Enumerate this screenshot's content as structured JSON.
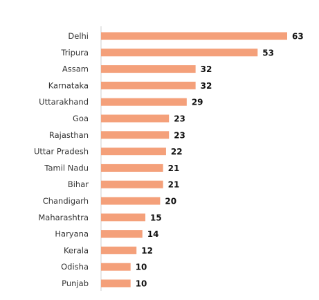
{
  "chart_data": {
    "type": "bar",
    "orientation": "horizontal",
    "categories": [
      "Delhi",
      "Tripura",
      "Assam",
      "Karnataka",
      "Uttarakhand",
      "Goa",
      "Rajasthan",
      "Uttar Pradesh",
      "Tamil Nadu",
      "Bihar",
      "Chandigarh",
      "Maharashtra",
      "Haryana",
      "Kerala",
      "Odisha",
      "Punjab"
    ],
    "values": [
      63,
      53,
      32,
      32,
      29,
      23,
      23,
      22,
      21,
      21,
      20,
      15,
      14,
      12,
      10,
      10
    ],
    "data_labels": [
      "63",
      "53",
      "32",
      "32",
      "29",
      "23",
      "23",
      "22",
      "21",
      "21",
      "20",
      "15",
      "14",
      "12",
      "10",
      "10"
    ],
    "title": "",
    "xlabel": "",
    "ylabel": "",
    "xlim": [
      0,
      63
    ],
    "grid": false,
    "legend": "none",
    "colors": {
      "bar": "#F4A07A",
      "axis": "#CCCCCC",
      "category_text": "#333333",
      "value_text": "#111111"
    }
  }
}
